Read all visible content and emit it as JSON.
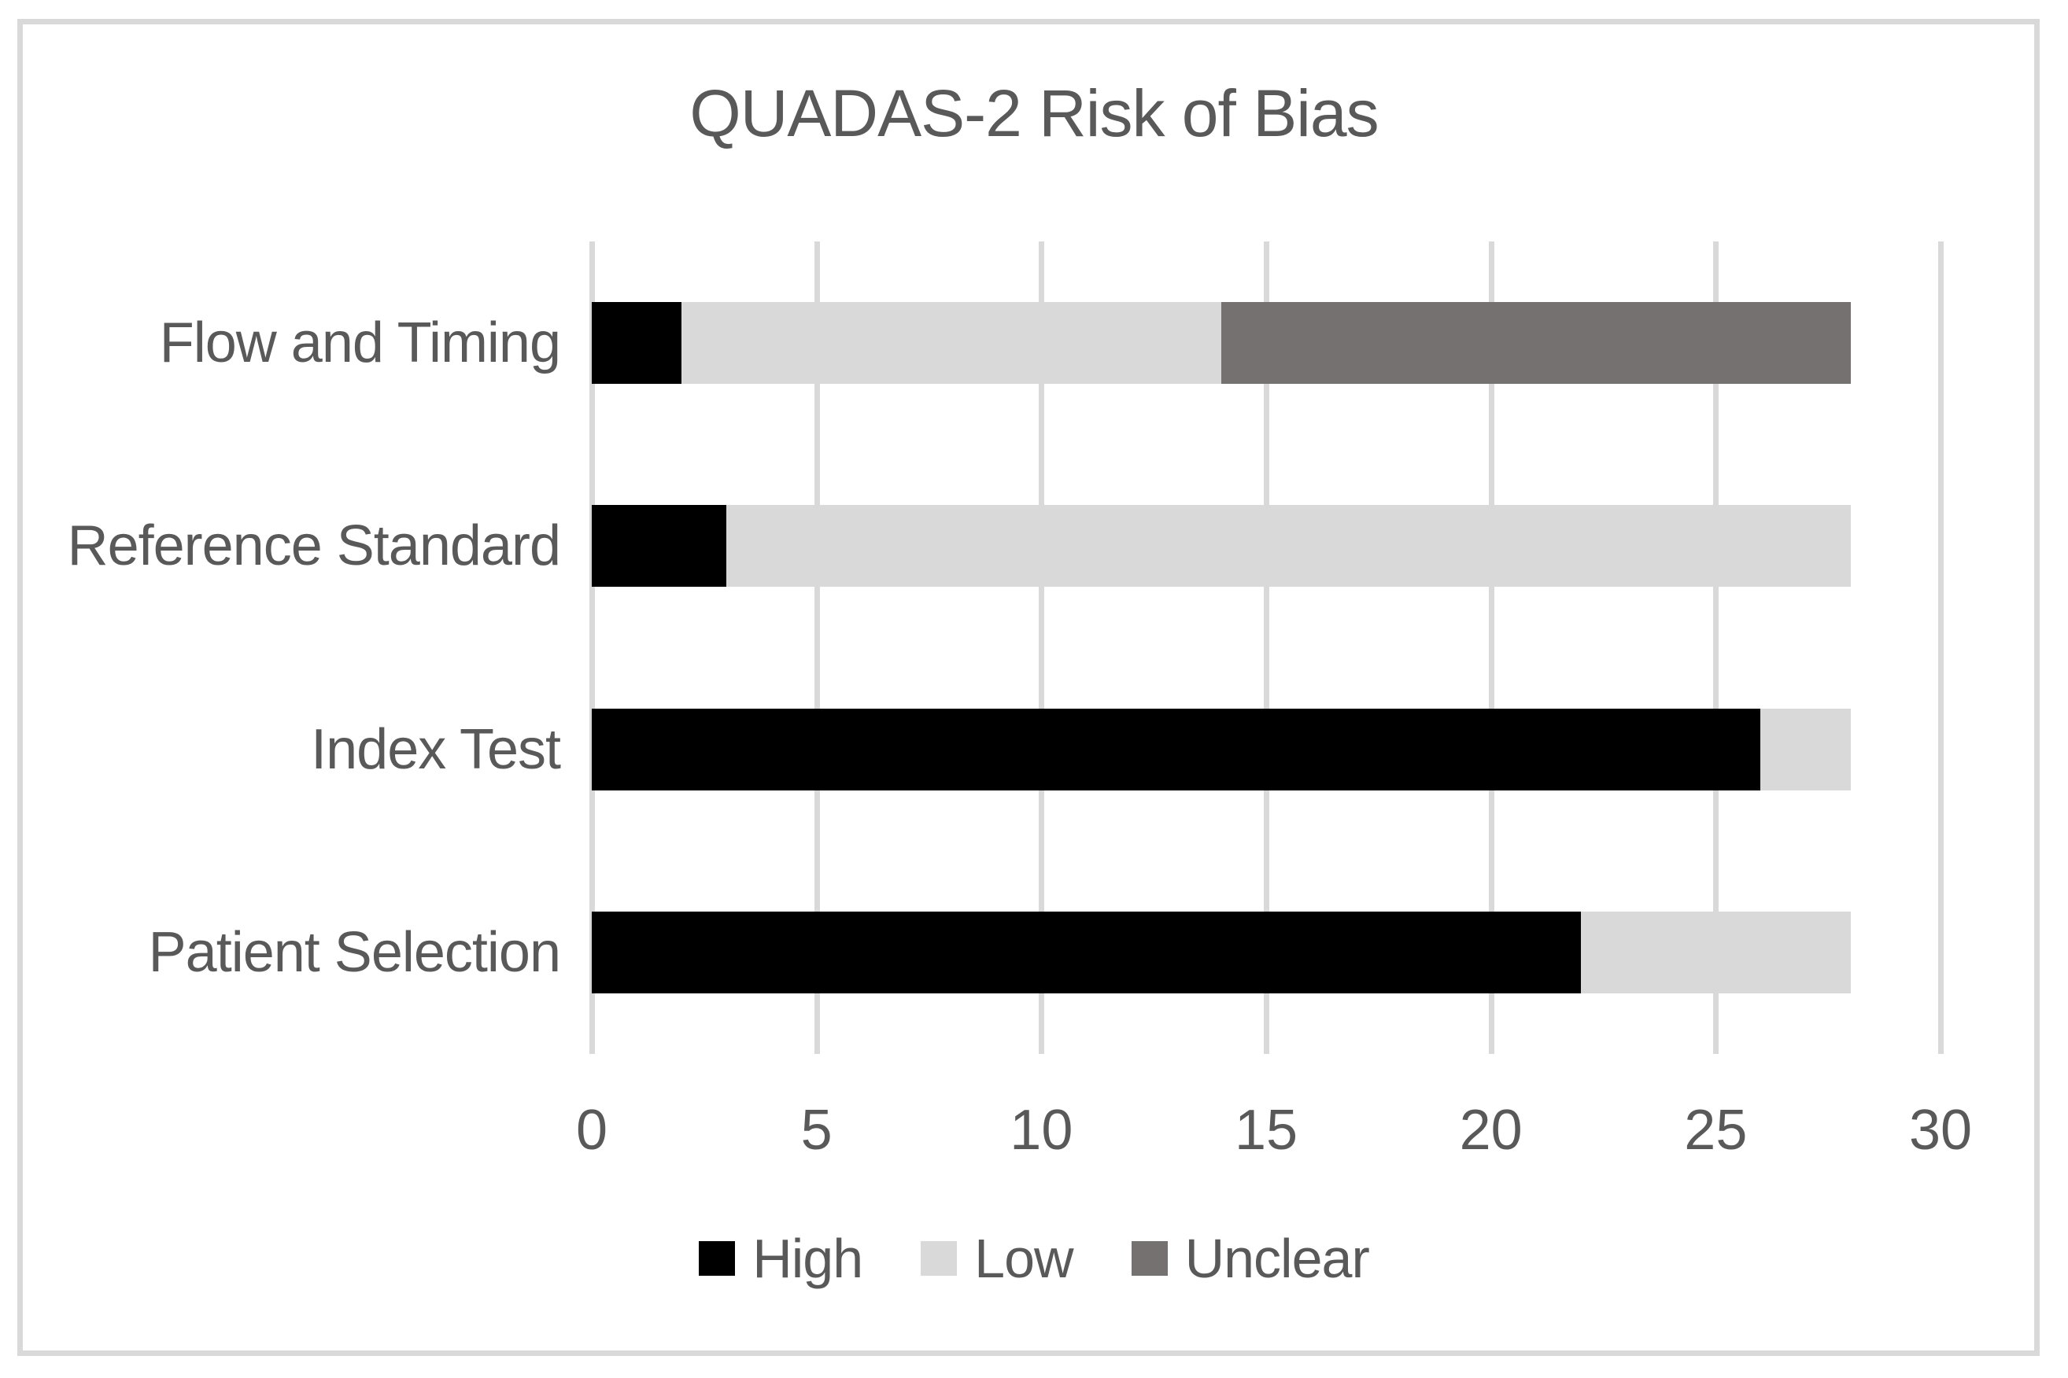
{
  "title": "QUADAS-2 Risk of Bias",
  "colors": {
    "high": "#000000",
    "low": "#d9d9d9",
    "unclear": "#767171",
    "text": "#595959",
    "gridline": "#d9d9d9",
    "frame_border": "#d9d9d9",
    "background": "#ffffff"
  },
  "chart_data": {
    "type": "bar",
    "orientation": "horizontal",
    "stacked": true,
    "title": "QUADAS-2 Risk of Bias",
    "categories": [
      "Flow and Timing",
      "Reference Standard",
      "Index Test",
      "Patient Selection"
    ],
    "series": [
      {
        "name": "High",
        "color": "#000000",
        "values": [
          2,
          3,
          26,
          22
        ]
      },
      {
        "name": "Low",
        "color": "#d9d9d9",
        "values": [
          12,
          25,
          2,
          6
        ]
      },
      {
        "name": "Unclear",
        "color": "#767171",
        "values": [
          14,
          0,
          0,
          0
        ]
      }
    ],
    "totals_per_category": [
      28,
      28,
      28,
      28
    ],
    "xlabel": "",
    "ylabel": "",
    "xlim": [
      0,
      30
    ],
    "x_ticks": [
      "0",
      "5",
      "10",
      "15",
      "20",
      "25",
      "30"
    ],
    "x_tick_values": [
      0,
      5,
      10,
      15,
      20,
      25,
      30
    ],
    "grid": true,
    "legend_position": "bottom",
    "legend_entries": [
      "High",
      "Low",
      "Unclear"
    ]
  }
}
